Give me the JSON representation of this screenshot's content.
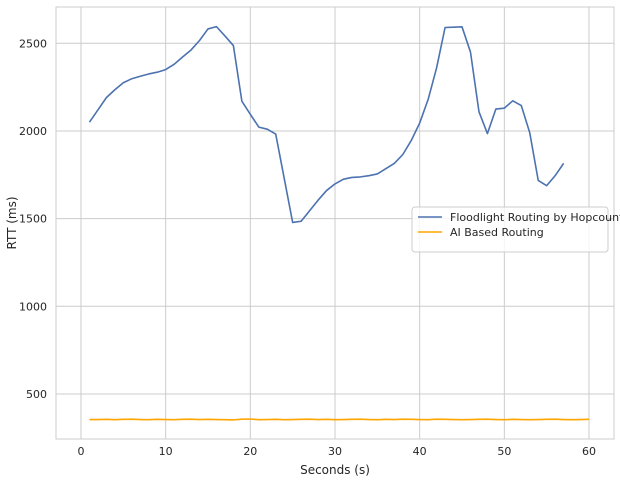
{
  "chart_data": {
    "type": "line",
    "title": "",
    "xlabel": "Seconds (s)",
    "ylabel": "RTT (ms)",
    "xlim": [
      -2.95,
      62.95
    ],
    "ylim": [
      243,
      2707
    ],
    "xticks": [
      0,
      10,
      20,
      30,
      40,
      50,
      60
    ],
    "yticks": [
      500,
      1000,
      1500,
      2000,
      2500
    ],
    "grid": true,
    "legend_position": "center-right",
    "series": [
      {
        "name": "Floodlight Routing by Hopcount",
        "color": "#4c72b0",
        "x": [
          1,
          2,
          3,
          4,
          5,
          6,
          7,
          8,
          9,
          10,
          11,
          12,
          13,
          14,
          15,
          16,
          17,
          18,
          19,
          20,
          21,
          22,
          23,
          24,
          25,
          26,
          27,
          28,
          29,
          30,
          31,
          32,
          33,
          34,
          35,
          36,
          37,
          38,
          39,
          40,
          41,
          42,
          43,
          44,
          45,
          46,
          47,
          48,
          49,
          50,
          51,
          52,
          53,
          54,
          55,
          56,
          57
        ],
        "values": [
          2050,
          2120,
          2190,
          2235,
          2275,
          2298,
          2312,
          2325,
          2335,
          2350,
          2380,
          2422,
          2462,
          2516,
          2582,
          2595,
          2542,
          2487,
          2170,
          2095,
          2022,
          2010,
          1982,
          1730,
          1478,
          1485,
          1545,
          1605,
          1660,
          1698,
          1725,
          1735,
          1738,
          1745,
          1755,
          1785,
          1815,
          1865,
          1945,
          2045,
          2180,
          2360,
          2590,
          2592,
          2594,
          2450,
          2110,
          1985,
          2125,
          2130,
          2172,
          2145,
          1990,
          1718,
          1688,
          1745,
          1815
        ]
      },
      {
        "name": "AI Based Routing",
        "color": "#ffa500",
        "x": [
          1,
          2,
          3,
          4,
          5,
          6,
          7,
          8,
          9,
          10,
          11,
          12,
          13,
          14,
          15,
          16,
          17,
          18,
          19,
          20,
          21,
          22,
          23,
          24,
          25,
          26,
          27,
          28,
          29,
          30,
          31,
          32,
          33,
          34,
          35,
          36,
          37,
          38,
          39,
          40,
          41,
          42,
          43,
          44,
          45,
          46,
          47,
          48,
          49,
          50,
          51,
          52,
          53,
          54,
          55,
          56,
          57,
          58,
          59,
          60
        ],
        "values": [
          354,
          354,
          355,
          353,
          355,
          356,
          354,
          353,
          355,
          354,
          353,
          355,
          356,
          354,
          355,
          354,
          353,
          352,
          356,
          357,
          353,
          354,
          355,
          353,
          354,
          355,
          356,
          354,
          355,
          353,
          354,
          355,
          356,
          354,
          353,
          355,
          354,
          356,
          355,
          354,
          353,
          356,
          355,
          354,
          353,
          354,
          355,
          356,
          354,
          353,
          355,
          354,
          353,
          354,
          355,
          356,
          354,
          353,
          354,
          355
        ]
      }
    ]
  }
}
